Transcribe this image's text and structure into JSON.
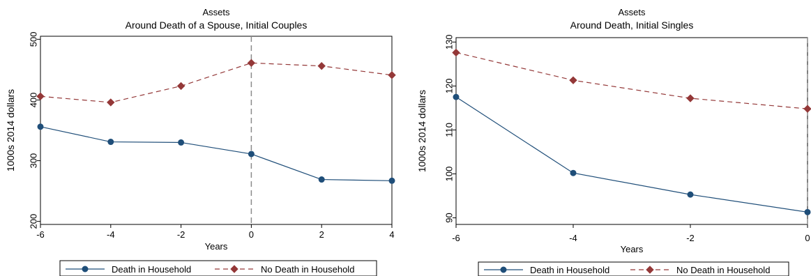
{
  "chart_data": [
    {
      "type": "line",
      "title": "Assets",
      "subtitle": "Around Death of a Spouse, Initial Couples",
      "xlabel": "Years",
      "ylabel": "1000s 2014 dollars",
      "x": [
        -6,
        -4,
        -2,
        0,
        2,
        4
      ],
      "xticks": [
        "-6",
        "-4",
        "-2",
        "0",
        "2",
        "4"
      ],
      "xlim": [
        -6,
        4
      ],
      "yticks": [
        "200",
        "300",
        "400",
        "500"
      ],
      "ylim": [
        195,
        505
      ],
      "reference_line_x": 0,
      "series": [
        {
          "name": "Death in Household",
          "color": "#1f4e79",
          "marker": "circle",
          "dash": "solid",
          "values": [
            356,
            331,
            330,
            311,
            269,
            267
          ]
        },
        {
          "name": "No Death in Household",
          "color": "#943838",
          "marker": "diamond",
          "dash": "dashed",
          "values": [
            406,
            396,
            423,
            461,
            456,
            441
          ]
        }
      ],
      "legend_position": "bottom"
    },
    {
      "type": "line",
      "title": "Assets",
      "subtitle": "Around Death, Initial Singles",
      "xlabel": "Years",
      "ylabel": "1000s 2014 dollars",
      "x": [
        -6,
        -4,
        -2,
        0
      ],
      "xticks": [
        "-6",
        "-4",
        "-2",
        "0"
      ],
      "xlim": [
        -6,
        0
      ],
      "yticks": [
        "90",
        "100",
        "110",
        "120",
        "130"
      ],
      "ylim": [
        88.5,
        131
      ],
      "reference_line_x": 0,
      "series": [
        {
          "name": "Death in Household",
          "color": "#1f4e79",
          "marker": "circle",
          "dash": "solid",
          "values": [
            117.5,
            100.2,
            95.3,
            91.3
          ]
        },
        {
          "name": "No Death in Household",
          "color": "#943838",
          "marker": "diamond",
          "dash": "dashed",
          "values": [
            127.6,
            121.3,
            117.2,
            114.8
          ]
        }
      ],
      "legend_position": "bottom"
    }
  ]
}
